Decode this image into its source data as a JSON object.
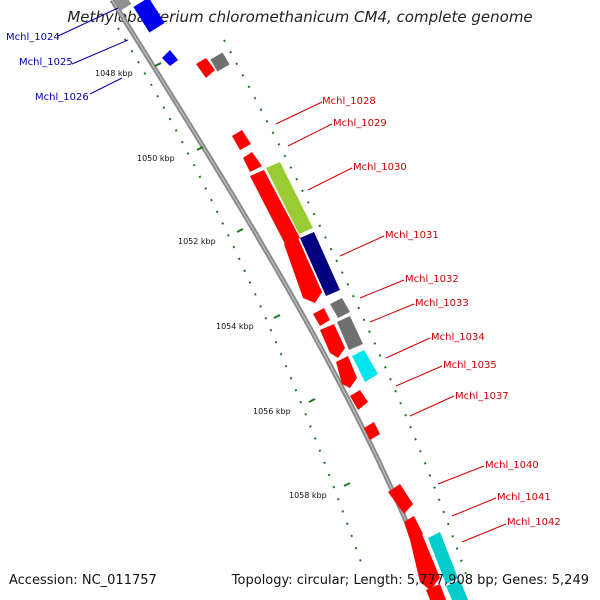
{
  "title": "Methylobacterium chloromethanicum CM4, complete genome",
  "footer": {
    "accession_label": "Accession:",
    "accession": "NC_011757",
    "topology_label": "Topology:",
    "topology": "circular",
    "length_label": "Length:",
    "length": "5,777,908 bp",
    "genes_label": "Genes:",
    "genes": "5,249"
  },
  "ticks": [
    "1048 kbp",
    "1050 kbp",
    "1052 kbp",
    "1054 kbp",
    "1056 kbp",
    "1058 kbp"
  ],
  "colors": {
    "backbone": "#888888",
    "forward_label": "#cc0000",
    "reverse_label": "#0000aa",
    "red": "#ff0000",
    "gray": "#707070",
    "lime": "#99cc33",
    "navy": "#000080",
    "cyan": "#00e5ee",
    "blue": "#0000ee",
    "ruler": "#1a7a1a"
  },
  "gene_labels": [
    {
      "text": "Mchl_1024",
      "strand": "reverse"
    },
    {
      "text": "Mchl_1025",
      "strand": "reverse"
    },
    {
      "text": "Mchl_1026",
      "strand": "reverse"
    },
    {
      "text": "Mchl_1028",
      "strand": "forward"
    },
    {
      "text": "Mchl_1029",
      "strand": "forward"
    },
    {
      "text": "Mchl_1030",
      "strand": "forward"
    },
    {
      "text": "Mchl_1031",
      "strand": "forward"
    },
    {
      "text": "Mchl_1032",
      "strand": "forward"
    },
    {
      "text": "Mchl_1033",
      "strand": "forward"
    },
    {
      "text": "Mchl_1034",
      "strand": "forward"
    },
    {
      "text": "Mchl_1035",
      "strand": "forward"
    },
    {
      "text": "Mchl_1037",
      "strand": "forward"
    },
    {
      "text": "Mchl_1040",
      "strand": "forward"
    },
    {
      "text": "Mchl_1041",
      "strand": "forward"
    },
    {
      "text": "Mchl_1042",
      "strand": "forward"
    }
  ]
}
